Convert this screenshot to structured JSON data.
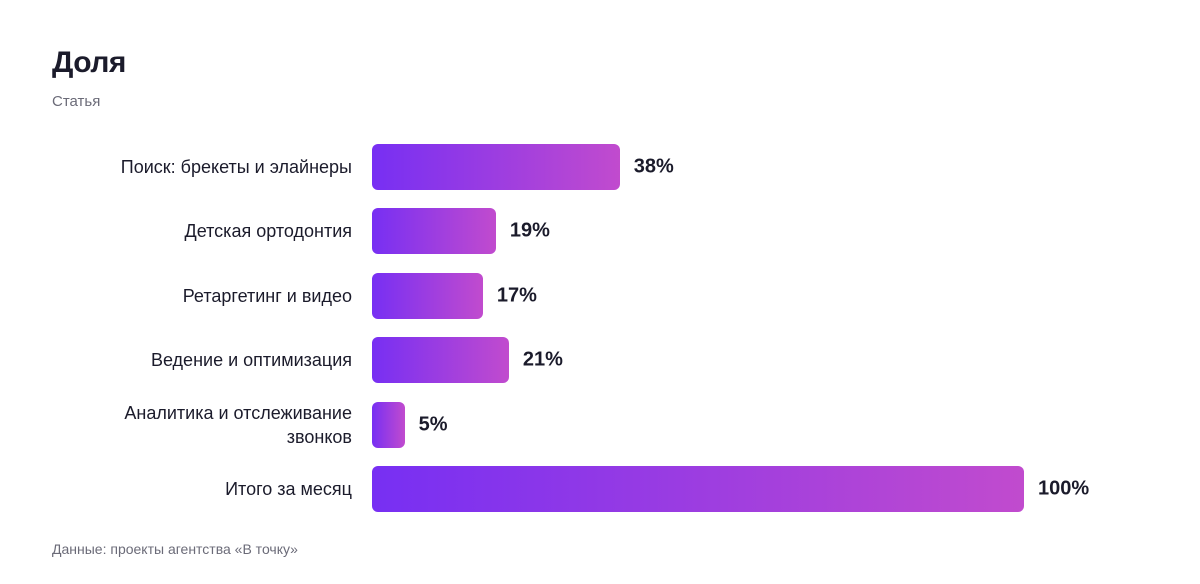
{
  "chart_data": {
    "type": "bar",
    "orientation": "horizontal",
    "title": "Доля",
    "subtitle": "Статья",
    "categories": [
      "Поиск: брекеты и элайнеры",
      "Детская ортодонтия",
      "Ретаргетинг и видео",
      "Ведение и оптимизация",
      "Аналитика и отслеживание звонков",
      "Итого за месяц"
    ],
    "values": [
      38,
      19,
      17,
      21,
      5,
      100
    ],
    "value_labels": [
      "38%",
      "19%",
      "17%",
      "21%",
      "5%",
      "100%"
    ],
    "colors": [
      "#772ff3",
      "#c14bce"
    ],
    "source": "Данные: проекты агентства «В точку»"
  }
}
